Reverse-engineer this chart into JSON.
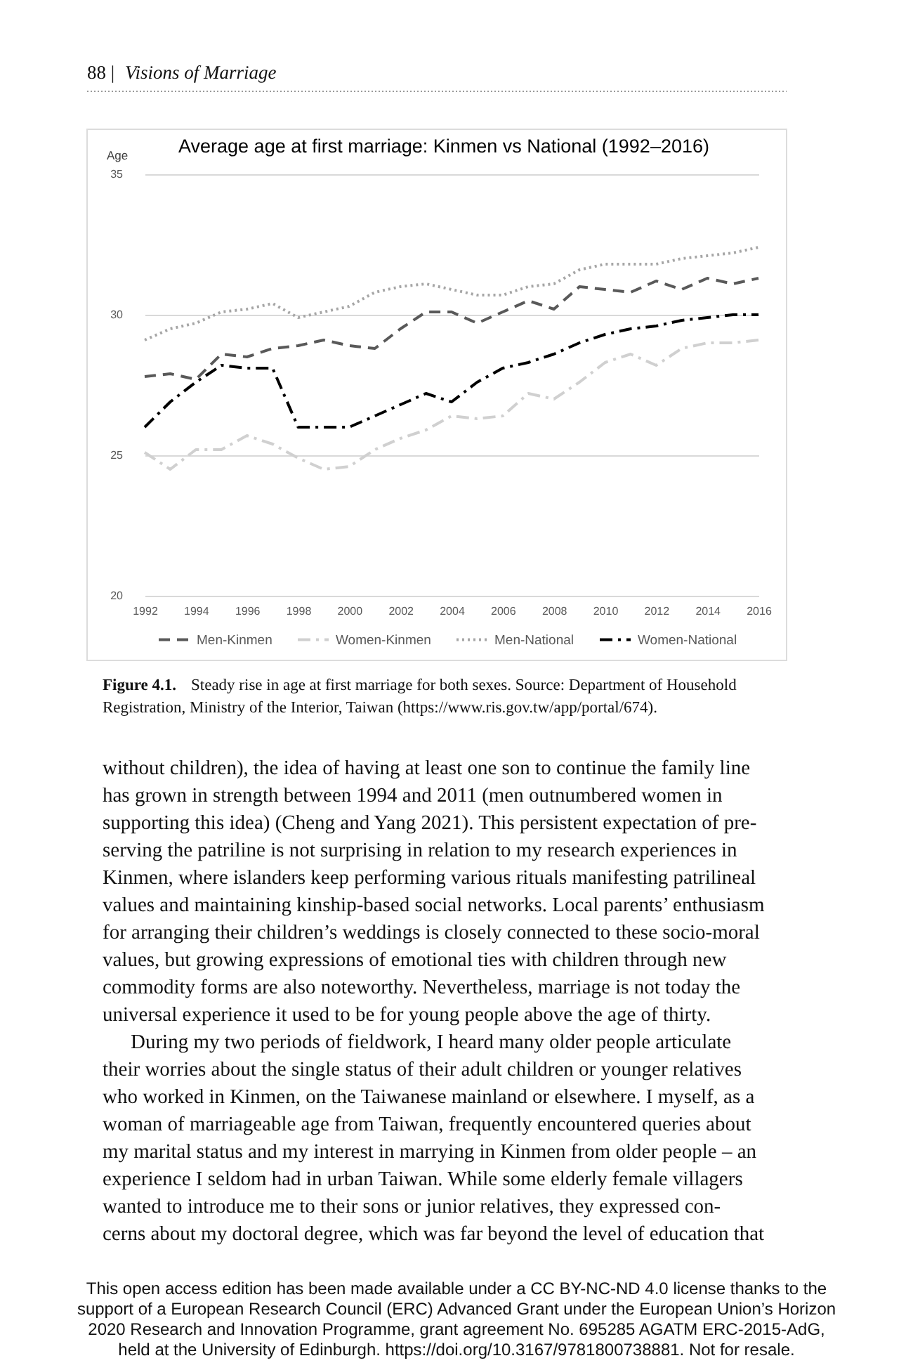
{
  "chart_data": {
    "type": "line",
    "title": "Average age at first marriage: Kinmen vs National (1992–2016)",
    "ylabel": "Age",
    "x": [
      1992,
      1993,
      1994,
      1995,
      1996,
      1997,
      1998,
      1999,
      2000,
      2001,
      2002,
      2003,
      2004,
      2005,
      2006,
      2007,
      2008,
      2009,
      2010,
      2011,
      2012,
      2013,
      2014,
      2015,
      2016
    ],
    "xlim": [
      1992,
      2016
    ],
    "xticks": [
      1992,
      1994,
      1996,
      1998,
      2000,
      2002,
      2004,
      2006,
      2008,
      2010,
      2012,
      2014,
      2016
    ],
    "ylim": [
      20,
      35
    ],
    "yticks": [
      20,
      25,
      30,
      35
    ],
    "grid": "y",
    "legend": "bottom",
    "series": [
      {
        "name": "Men-Kinmen",
        "color": "#595959",
        "line_style": "dashed",
        "values": [
          27.8,
          27.9,
          27.7,
          28.6,
          28.5,
          28.8,
          28.9,
          29.1,
          28.9,
          28.8,
          29.5,
          30.1,
          30.1,
          29.7,
          30.1,
          30.5,
          30.2,
          31.0,
          30.9,
          30.8,
          31.2,
          30.9,
          31.3,
          31.1,
          31.3
        ]
      },
      {
        "name": "Women-Kinmen",
        "color": "#d0d0d0",
        "line_style": "dashdot",
        "values": [
          25.1,
          24.5,
          25.2,
          25.2,
          25.7,
          25.4,
          24.9,
          24.5,
          24.6,
          25.2,
          25.6,
          25.9,
          26.4,
          26.3,
          26.4,
          27.2,
          27.0,
          27.6,
          28.3,
          28.6,
          28.2,
          28.8,
          29.0,
          29.0,
          29.1
        ]
      },
      {
        "name": "Men-National",
        "color": "#a6a6a6",
        "line_style": "dotted",
        "values": [
          29.1,
          29.5,
          29.7,
          30.1,
          30.2,
          30.4,
          29.9,
          30.1,
          30.3,
          30.8,
          31.0,
          31.1,
          30.9,
          30.7,
          30.7,
          31.0,
          31.1,
          31.6,
          31.8,
          31.8,
          31.8,
          32.0,
          32.1,
          32.2,
          32.4
        ]
      },
      {
        "name": "Women-National",
        "color": "#000000",
        "line_style": "dashdot",
        "values": [
          26.0,
          26.9,
          27.6,
          28.2,
          28.1,
          28.1,
          26.0,
          26.0,
          26.0,
          26.4,
          26.8,
          27.2,
          26.9,
          27.6,
          28.1,
          28.3,
          28.6,
          29.0,
          29.3,
          29.5,
          29.6,
          29.8,
          29.9,
          30.0,
          30.0
        ]
      }
    ],
    "annotations": [
      "88 |",
      "Visions of Marriage",
      "Figure 4.1.",
      "Steady rise in age at first marriage for both sexes. Source: Department of Household",
      "Registration, Ministry of the Interior, Taiwan (https://www.ris.gov.tw/app/portal/674).",
      "without children), the idea of having at least one son to continue the family line",
      "has grown in strength between 1994 and 2011 (men outnumbered women in",
      "supporting this idea) (Cheng and Yang 2021). This persistent expectation of pre-",
      "serving the patriline is not surprising in relation to my research experiences in",
      "Kinmen, where islanders keep performing various rituals manifesting patrilineal",
      "values and maintaining kinship-based social networks. Local parents’ enthusiasm",
      "for arranging their children’s weddings is closely connected to these socio-moral",
      "values, but growing expressions of emotional ties with children through new",
      "commodity forms are also noteworthy. Nevertheless, marriage is not today the",
      "universal experience it used to be for young people above the age of thirty.",
      "During my two periods of fieldwork, I heard many older people articulate",
      "their worries about the single status of their adult children or younger relatives",
      "who worked in Kinmen, on the Taiwanese mainland or elsewhere. I myself, as a",
      "woman of marriageable age from Taiwan, frequently encountered queries about",
      "my marital status and my interest in marrying in Kinmen from older people – an",
      "experience I seldom had in urban Taiwan. While some elderly female villagers",
      "wanted to introduce me to their sons or junior relatives, they expressed con-",
      "cerns about my doctoral degree, which was far beyond the level of education that",
      "This open access edition has been made available under a CC BY-NC-ND 4.0 license thanks to the",
      "support of a European Research Council (ERC) Advanced Grant under the European Union’s Horizon",
      "2020 Research and Innovation Programme, grant agreement No. 695285 AGATM ERC-2015-AdG,",
      "held at the University of Edinburgh. https://doi.org/10.3167/9781800738881. Not for resale."
    ]
  }
}
